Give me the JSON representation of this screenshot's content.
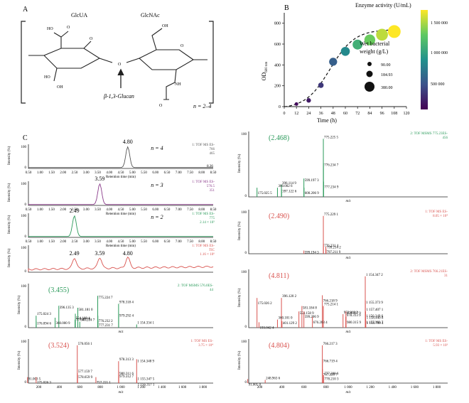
{
  "panel_a": {
    "letter": "A",
    "unit1": "GlcUA",
    "unit2": "GlcNAc",
    "linkage": "β-1,3-Glucan",
    "repeat": "n = 2–4",
    "oh_labels": [
      "HO",
      "HO",
      "OH",
      "OH",
      "NH",
      "O",
      "O",
      "O",
      "O",
      "O"
    ]
  },
  "panel_b": {
    "letter": "B",
    "legend_color_title": "Enzyme activity (U/mL)",
    "legend_color_ticks": [
      "1 500 000",
      "1 000 000",
      "500 000"
    ],
    "legend_size_title_1": "Wet bacterial",
    "legend_size_title_2": "weight (g/L)",
    "legend_size_values": [
      "90.00",
      "184.93",
      "380.00"
    ],
    "xlabel": "Time (h)",
    "ylabel": "OD",
    "ylabel_sub": "600 nm",
    "colors": {
      "viridis_low": "#440154",
      "viridis_mid": "#21918c",
      "viridis_high": "#fde725"
    }
  },
  "chart_data": {
    "type": "scatter",
    "x": [
      12,
      24,
      36,
      48,
      60,
      72,
      84,
      96,
      108
    ],
    "y": [
      25,
      60,
      205,
      430,
      530,
      595,
      640,
      690,
      720
    ],
    "size_g_per_L": [
      90,
      120,
      150,
      230,
      260,
      290,
      320,
      350,
      380
    ],
    "activity": [
      50000,
      120000,
      250000,
      450000,
      700000,
      950000,
      1150000,
      1350000,
      1500000
    ],
    "xlabel": "Time (h)",
    "ylabel": "OD600 nm",
    "xlim": [
      0,
      120
    ],
    "ylim": [
      0,
      900
    ],
    "xticks": [
      "0",
      "12",
      "24",
      "36",
      "48",
      "60",
      "72",
      "84",
      "96",
      "108",
      "120"
    ],
    "yticks": [
      "0",
      "200",
      "400",
      "600",
      "800"
    ]
  },
  "panel_c": {
    "letter": "C",
    "ret_label": "Retention time (min)",
    "ret_ticks": [
      "0.50",
      "1.00",
      "1.50",
      "2.00",
      "2.50",
      "3.00",
      "3.50",
      "4.00",
      "4.50",
      "5.00",
      "5.50",
      "6.00",
      "6.50",
      "7.00",
      "7.50",
      "8.00",
      "8.50"
    ],
    "intensity_label": "Intensity (%)",
    "mz_label": "m/z",
    "mz_ticks": [
      "200",
      "400",
      "600",
      "800",
      "1 000",
      "1 200",
      "1 400",
      "1 600",
      "1 800"
    ],
    "lc": [
      {
        "peak": "4.80",
        "n": "n = 4",
        "info1": "1: TOF MS ES-",
        "info2": "766",
        "info3": "465",
        "extra": "8.36"
      },
      {
        "peak": "3.59",
        "n": "n = 3",
        "info1": "1: TOF MS ES-",
        "info2": "576.5",
        "info3": "351"
      },
      {
        "peak": "2.49",
        "n": "n = 2",
        "info1": "1: TOF MS ES-",
        "info2": "775",
        "info3": "2.14 × 10⁵"
      },
      {
        "peaks": [
          "2.49",
          "3.59",
          "4.80"
        ],
        "info1": "1: TOF MS ES-",
        "info2": "TIC",
        "info3": "1.16 × 10⁶"
      }
    ],
    "ms_left_1": {
      "tag": "(3.455)",
      "info": "2: TOF MSMS 576.0ES-",
      "info2": "44",
      "labels": [
        "175.024 3",
        "396.135 3",
        "360.000 9",
        "554.160 4",
        "581.181 0",
        "557.207 9",
        "600.214 7",
        "775.224 7",
        "776.232 2",
        "978.318 4",
        "979.292 4",
        "777.231 7",
        "1 154.334 1",
        "176.094 6"
      ]
    },
    "ms_left_2": {
      "tag": "(3.524)",
      "info": "1: TOF MS ES-",
      "info2": "3.75 × 10⁴",
      "labels": [
        "576.056 1",
        "91.003 5",
        "175.026 3",
        "577.159 7",
        "578.659 9",
        "757.221 1",
        "978.313 3",
        "1 154.348 9",
        "979.312 7",
        "980.311 6",
        "1 155.347 5",
        "1 156.357 1"
      ]
    },
    "ms_right_1": {
      "tag": "(2.468)",
      "info": "2: TOF MSMS 775.23ES-",
      "info2": "456",
      "labels": [
        "775.225 5",
        "776.234 7",
        "777.234 9",
        "396.114 9",
        "599.197 3",
        "175.025 5",
        "360.002 6",
        "397.122 6",
        "600.206 9"
      ]
    },
    "ms_right_2": {
      "tag": "(2.490)",
      "info": "1: TOF MS ES-",
      "info2": "8.05 × 10⁴",
      "labels": [
        "775.229 1",
        "776.231 4",
        "797.211 9",
        "799.214 2",
        "599.194 3"
      ]
    },
    "ms_right_3": {
      "tag": "(4.811)",
      "info": "2: TOF MSMS 766.21ES-",
      "info2": "31",
      "labels": [
        "1 154.347 2",
        "1 155.373 9",
        "175.026 2",
        "396.120 2",
        "581.184 8",
        "766.218 9",
        "775.214 1",
        "554.158 9",
        "599.206 9",
        "360.101 0",
        "401.129 2",
        "676.203 4",
        "953.268 2",
        "979.327 9",
        "980.315 9",
        "1 157.407 1",
        "1 156.349 6",
        "1 157.393 7",
        "1 158.440 8",
        "1 158.799 4",
        "193.042 4",
        "978.313 9"
      ]
    },
    "ms_right_4": {
      "tag": "(4.804)",
      "info": "1: TOF MS ES-",
      "info2": "5.93 × 10³",
      "labels": [
        "766.217 3",
        "766.719 4",
        "767.220 7",
        "777.208 6",
        "778.210 3",
        "91.005 0",
        "248.963 6"
      ]
    }
  }
}
